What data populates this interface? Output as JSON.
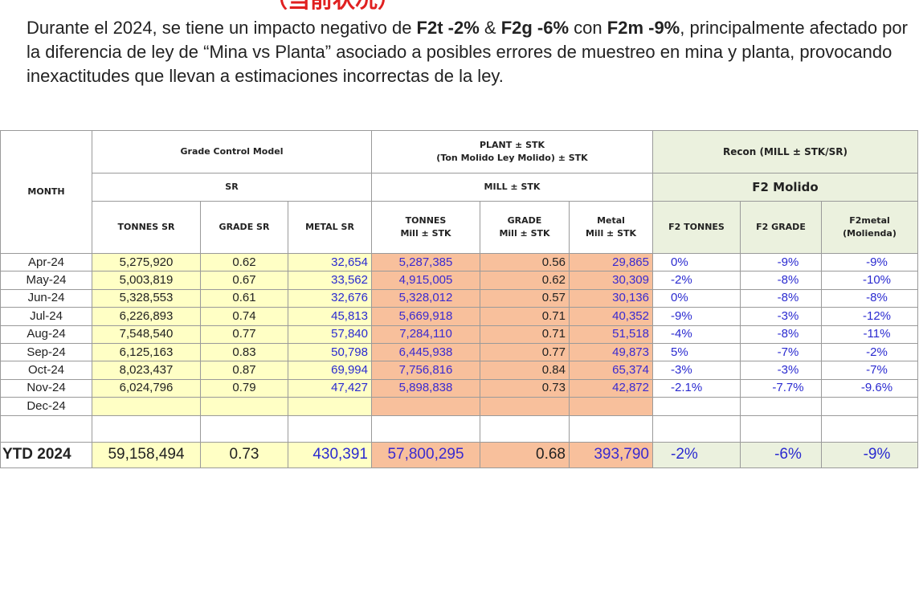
{
  "header": {
    "title": "（当前状况）"
  },
  "paragraph": [
    {
      "text": "Durante el 2024, se tiene un impacto negativo de ",
      "bold": false
    },
    {
      "text": "F2t -2%",
      "bold": true
    },
    {
      "text": " & ",
      "bold": false
    },
    {
      "text": "F2g -6%",
      "bold": true
    },
    {
      "text": " con ",
      "bold": false
    },
    {
      "text": "F2m -9%",
      "bold": true
    },
    {
      "text": ", principalmente afectado por la diferencia de ley de “Mina vs Planta” asociado a posibles errores de muestreo en mina y planta, provocando inexactitudes que llevan  a estimaciones incorrectas de  la ley.",
      "bold": false
    }
  ],
  "table": {
    "month_header": "MONTH",
    "groups": [
      "Grade Control Model",
      [
        "PLANT ± STK",
        "(Ton Molido Ley Molido)  ± STK"
      ],
      "Recon (MILL  ± STK/SR)"
    ],
    "subgroups": [
      "SR",
      "MILL ± STK",
      "F2 Molido"
    ],
    "columns": [
      [
        "TONNES SR"
      ],
      [
        "GRADE SR"
      ],
      [
        "METAL SR"
      ],
      [
        "TONNES",
        "Mill ± STK"
      ],
      [
        "GRADE",
        "Mill ± STK"
      ],
      [
        "Metal",
        "Mill ± STK"
      ],
      [
        "F2 TONNES"
      ],
      [
        "F2 GRADE"
      ],
      [
        "F2metal",
        "(Molienda)"
      ]
    ],
    "rows": [
      [
        "Apr-24",
        "5,275,920",
        "0.62",
        "32,654",
        "5,287,385",
        "0.56",
        "29,865",
        "0%",
        "-9%",
        "-9%"
      ],
      [
        "May-24",
        "5,003,819",
        "0.67",
        "33,562",
        "4,915,005",
        "0.62",
        "30,309",
        "-2%",
        "-8%",
        "-10%"
      ],
      [
        "Jun-24",
        "5,328,553",
        "0.61",
        "32,676",
        "5,328,012",
        "0.57",
        "30,136",
        "0%",
        "-8%",
        "-8%"
      ],
      [
        "Jul-24",
        "6,226,893",
        "0.74",
        "45,813",
        "5,669,918",
        "0.71",
        "40,352",
        "-9%",
        "-3%",
        "-12%"
      ],
      [
        "Aug-24",
        "7,548,540",
        "0.77",
        "57,840",
        "7,284,110",
        "0.71",
        "51,518",
        "-4%",
        "-8%",
        "-11%"
      ],
      [
        "Sep-24",
        "6,125,163",
        "0.83",
        "50,798",
        "6,445,938",
        "0.77",
        "49,873",
        "5%",
        "-7%",
        "-2%"
      ],
      [
        "Oct-24",
        "8,023,437",
        "0.87",
        "69,994",
        "7,756,816",
        "0.84",
        "65,374",
        "-3%",
        "-3%",
        "-7%"
      ],
      [
        "Nov-24",
        "6,024,796",
        "0.79",
        "47,427",
        "5,898,838",
        "0.73",
        "42,872",
        "-2.1%",
        "-7.7%",
        "-9.6%"
      ],
      [
        "Dec-24"
      ]
    ],
    "total": [
      "YTD 2024",
      "59,158,494",
      "0.73",
      "430,391",
      "57,800,295",
      "0.68",
      "393,790",
      "-2%",
      "-6%",
      "-9%"
    ]
  }
}
